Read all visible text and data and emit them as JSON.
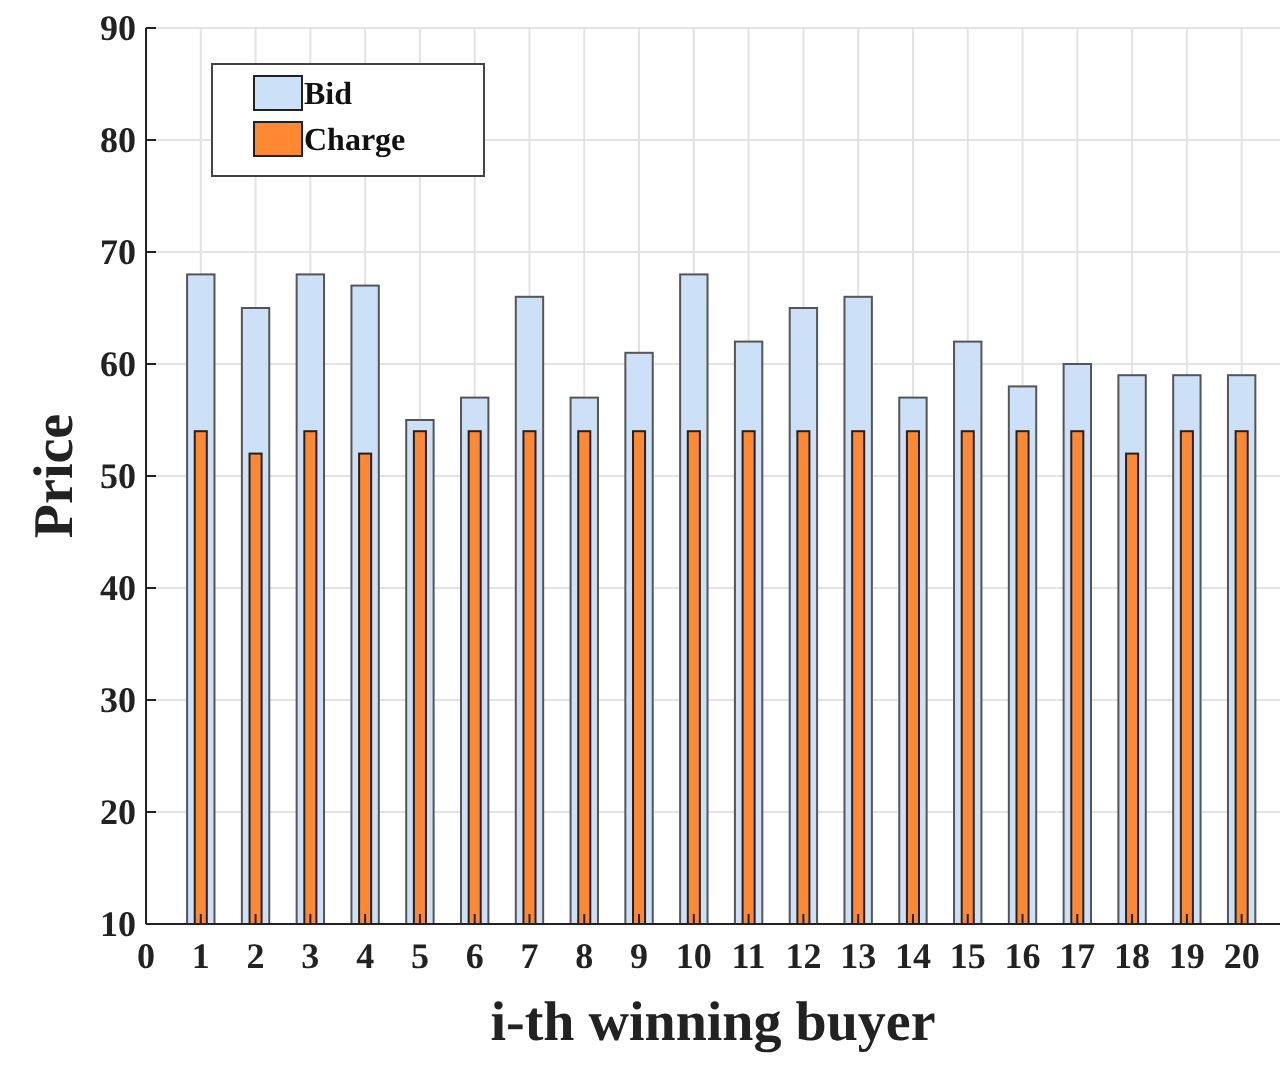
{
  "chart_data": {
    "type": "bar",
    "xlabel": "i-th winning buyer",
    "ylabel": "Price",
    "x": [
      1,
      2,
      3,
      4,
      5,
      6,
      7,
      8,
      9,
      10,
      11,
      12,
      13,
      14,
      15,
      16,
      17,
      18,
      19,
      20
    ],
    "series": [
      {
        "name": "Bid",
        "color": "#cce0f7",
        "values": [
          68,
          65,
          68,
          67,
          55,
          57,
          66,
          57,
          61,
          68,
          62,
          65,
          66,
          57,
          62,
          58,
          60,
          59,
          59,
          59
        ]
      },
      {
        "name": "Charge",
        "color": "#ff8833",
        "values": [
          54,
          52,
          54,
          52,
          54,
          54,
          54,
          54,
          54,
          54,
          54,
          54,
          54,
          54,
          54,
          54,
          54,
          52,
          54,
          54
        ]
      }
    ],
    "xlim": [
      0,
      20.7
    ],
    "xticks": [
      0,
      1,
      2,
      3,
      4,
      5,
      6,
      7,
      8,
      9,
      10,
      11,
      12,
      13,
      14,
      15,
      16,
      17,
      18,
      19,
      20
    ],
    "ylim": [
      10,
      90
    ],
    "yticks": [
      10,
      20,
      30,
      40,
      50,
      60,
      70,
      80,
      90
    ],
    "grid": true,
    "legend": "top left"
  }
}
